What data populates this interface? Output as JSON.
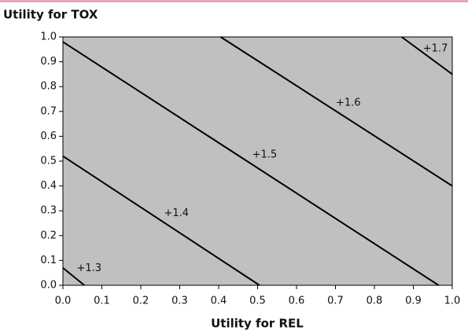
{
  "chart_data": {
    "type": "line",
    "title": "Utility for TOX",
    "x_label": "Utility for REL",
    "xlim": [
      0,
      1
    ],
    "ylim": [
      0,
      1
    ],
    "xticks": [
      {
        "value": 0,
        "label": "0.0"
      },
      0.1,
      0.2,
      0.3,
      0.4,
      0.5,
      0.6,
      0.7,
      0.8,
      0.9,
      {
        "value": 1,
        "label": "1.0"
      }
    ],
    "yticks": [
      {
        "value": 0,
        "label": "0.0"
      },
      0.1,
      0.2,
      0.3,
      0.4,
      0.5,
      0.6,
      0.7,
      0.8,
      0.9,
      {
        "value": 1,
        "label": "1.0"
      }
    ],
    "background": "#c0c0c0",
    "series": [
      {
        "name": "+1.3",
        "color": "#000000",
        "x": [
          0,
          0.055
        ],
        "values": [
          0.07,
          0
        ]
      },
      {
        "name": "+1.4",
        "color": "#000000",
        "x": [
          0,
          0.505
        ],
        "values": [
          0.52,
          0
        ]
      },
      {
        "name": "+1.5",
        "color": "#000000",
        "x": [
          0,
          0.965
        ],
        "values": [
          0.98,
          0
        ]
      },
      {
        "name": "+1.6",
        "color": "#000000",
        "x": [
          0.405,
          1
        ],
        "values": [
          1,
          0.4
        ]
      },
      {
        "name": "+1.7",
        "color": "#000000",
        "x": [
          0.87,
          1
        ],
        "values": [
          1,
          0.85
        ]
      }
    ]
  }
}
